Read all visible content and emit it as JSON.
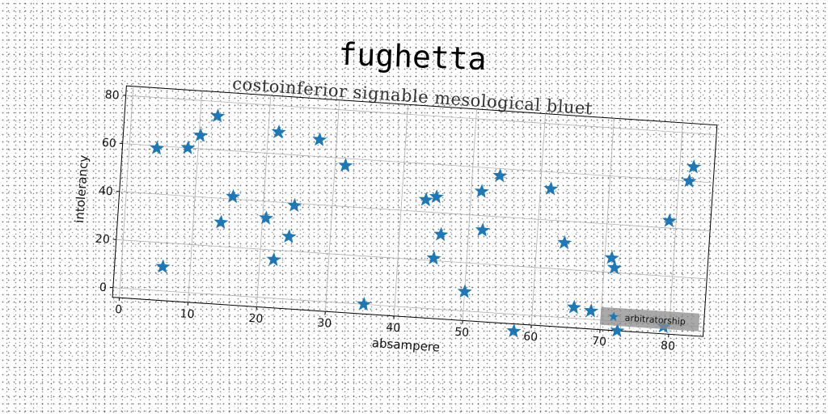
{
  "chart_data": {
    "type": "scatter",
    "title": "fughetta",
    "subtitle": "costoinferior signable mesological bluet",
    "xlabel": "absampere",
    "ylabel": "intolerancy",
    "xlim": [
      -1,
      85
    ],
    "ylim": [
      -4,
      84
    ],
    "xticks": [
      0,
      10,
      20,
      30,
      40,
      50,
      60,
      70,
      80
    ],
    "yticks": [
      0,
      20,
      40,
      60,
      80
    ],
    "grid": true,
    "legend_position": "lower-right",
    "series": [
      {
        "name": "arbitratorship",
        "color": "#1f77b4",
        "marker": "star",
        "points": [
          [
            4,
            59
          ],
          [
            6,
            10
          ],
          [
            8.5,
            60
          ],
          [
            10.2,
            65.5
          ],
          [
            12.5,
            74
          ],
          [
            14,
            30
          ],
          [
            15.5,
            41
          ],
          [
            20.5,
            33
          ],
          [
            21.5,
            69
          ],
          [
            22,
            16
          ],
          [
            24,
            26
          ],
          [
            24.5,
            39
          ],
          [
            27.5,
            67
          ],
          [
            31.5,
            57
          ],
          [
            35.5,
            0
          ],
          [
            43.5,
            45
          ],
          [
            45,
            46.5
          ],
          [
            45.2,
            21
          ],
          [
            46,
            31
          ],
          [
            50,
            8
          ],
          [
            51.5,
            50
          ],
          [
            52,
            34
          ],
          [
            54,
            57
          ],
          [
            57.5,
            -7
          ],
          [
            61.5,
            53
          ],
          [
            64,
            31
          ],
          [
            66,
            4.5
          ],
          [
            68.5,
            3.5
          ],
          [
            71,
            26
          ],
          [
            71.5,
            22
          ],
          [
            72.5,
            -4
          ],
          [
            79,
            43
          ],
          [
            79.2,
            -1
          ],
          [
            81.5,
            60
          ],
          [
            82,
            66
          ]
        ]
      }
    ]
  }
}
